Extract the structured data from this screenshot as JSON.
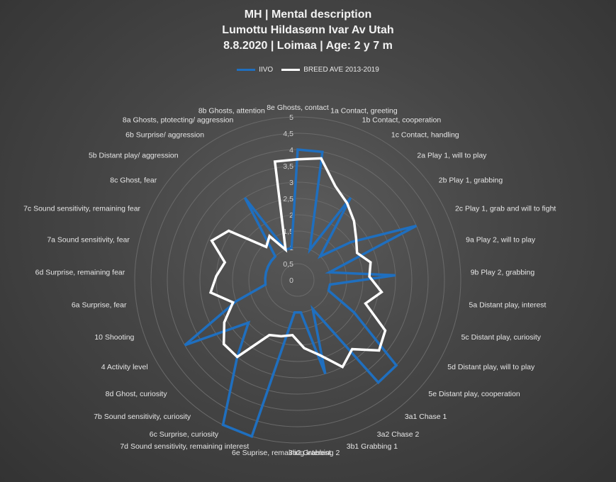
{
  "header": {
    "line1": "MH | Mental description",
    "line2": "Lumottu Hildasønn Ivar Av Utah",
    "line3": "8.8.2020 | Loimaa | Age: 2 y 7 m"
  },
  "colors": {
    "ivo": "#1f6fbf",
    "breed": "#ffffff",
    "grid": "#6a6a6a"
  },
  "chart_data": {
    "type": "radar",
    "title": "",
    "axes": [
      "8e Ghosts, contact",
      "1a Contact, greeting",
      "1b Contact, cooperation",
      "1c Contact, handling",
      "2a Play 1, will to play",
      "2b Play 1, grabbing",
      "2c Play 1, grab and will to fight",
      "9a Play 2, will to play",
      "9b Play 2, grabbing",
      "5a Distant play, interest",
      "5c Distant play, curiosity",
      "5d Distant play, will to play",
      "5e Distant play, cooperation",
      "3a1 Chase 1",
      "3a2 Chase 2",
      "3b1 Grabbing 1",
      "3b2 Grabbing 2",
      "6e Suprise, remaining interest",
      "7d Sound sensitivity, remaining interest",
      "6c Surprise, curiosity",
      "7b Sound sensitivity, curiosity",
      "8d Ghost, curiosity",
      "4 Activity level",
      "10 Shooting",
      "6a Surprise, fear",
      "6d Surprise, remaining fear",
      "7a Sound sensitivity, fear",
      "7c Sound sensitivity, remaining fear",
      "8c Ghost, fear",
      "5b Distant play/ aggression",
      "6b Surprise/ aggression",
      "8a Ghosts, ptotecting/ aggression",
      "8b Ghosts, attention"
    ],
    "rmin": 0,
    "rmax": 5,
    "ticks": [
      "0",
      "0,5",
      "1",
      "1,5",
      "2",
      "2,5",
      "3",
      "3,5",
      "4",
      "4,5",
      "5"
    ],
    "grid": true,
    "legend_position": "top",
    "series": [
      {
        "name": "IIVO",
        "values": [
          4,
          4,
          1,
          3,
          1,
          2,
          4,
          1,
          3,
          1,
          1,
          2,
          4,
          4,
          1,
          3,
          1,
          1,
          5,
          5,
          3,
          2,
          4,
          2,
          1,
          1,
          1,
          1,
          1,
          1,
          3,
          1,
          1
        ]
      },
      {
        "name": "BREED AVE 2013-2019",
        "values": [
          3.7,
          3.8,
          3.1,
          2.8,
          2.5,
          2.2,
          2.0,
          2.3,
          2.2,
          2.6,
          2.2,
          3.1,
          3.3,
          2.7,
          3.0,
          2.4,
          2.1,
          1.7,
          1.8,
          1.9,
          3.0,
          3.0,
          2.6,
          2.1,
          2.7,
          2.5,
          2.3,
          2.9,
          2.6,
          1.4,
          1.6,
          1.0,
          3.7
        ]
      }
    ]
  }
}
